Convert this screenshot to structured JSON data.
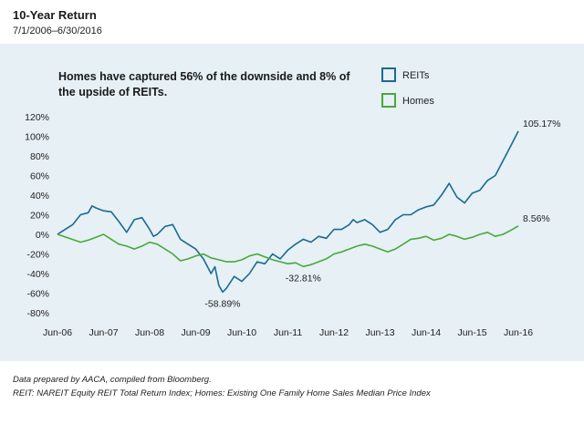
{
  "title": "10-Year Return",
  "subtitle": "7/1/2006–6/30/2016",
  "annotation": "Homes have captured 56% of the downside and 8% of the upside of REITs.",
  "footnotes": [
    "Data prepared by AACA, compiled from Bloomberg.",
    "REIT: NAREIT Equity REIT Total Return Index; Homes: Existing One Family Home Sales Median Price Index"
  ],
  "chart_data": {
    "type": "line",
    "title": "10-Year Return",
    "subtitle": "7/1/2006–6/30/2016",
    "xlabel": "",
    "ylabel": "",
    "x_tick_labels": [
      "Jun-06",
      "Jun-07",
      "Jun-08",
      "Jun-09",
      "Jun-10",
      "Jun-11",
      "Jun-12",
      "Jun-13",
      "Jun-14",
      "Jun-15",
      "Jun-16"
    ],
    "y_tick_labels": [
      "120%",
      "100%",
      "80%",
      "60%",
      "40%",
      "20%",
      "0%",
      "-20%",
      "-40%",
      "-60%",
      "-80%"
    ],
    "y_ticks": [
      120,
      100,
      80,
      60,
      40,
      20,
      0,
      -20,
      -40,
      -60,
      -80
    ],
    "ylim": [
      -80,
      120
    ],
    "xlim": [
      0,
      120
    ],
    "x_unit": "months since Jun-06",
    "grid": false,
    "legend_position": "top-right",
    "series": [
      {
        "name": "REITs",
        "color": "#1b6a8f",
        "x": [
          0,
          2,
          4,
          6,
          8,
          9,
          10,
          12,
          14,
          16,
          18,
          20,
          22,
          24,
          25,
          26,
          28,
          30,
          32,
          34,
          36,
          38,
          40,
          41,
          42,
          43,
          44,
          46,
          48,
          50,
          52,
          54,
          56,
          58,
          60,
          62,
          64,
          66,
          68,
          70,
          72,
          74,
          76,
          77,
          78,
          80,
          82,
          84,
          86,
          88,
          90,
          92,
          94,
          96,
          98,
          100,
          102,
          104,
          106,
          108,
          110,
          112,
          114,
          116,
          118,
          120
        ],
        "y": [
          0,
          5,
          10,
          20,
          22,
          29,
          27,
          24,
          23,
          13,
          2,
          15,
          17,
          5,
          -2,
          0,
          8,
          10,
          -5,
          -10,
          -15,
          -25,
          -40,
          -33,
          -52,
          -58.89,
          -55,
          -43,
          -48,
          -40,
          -28,
          -30,
          -20,
          -25,
          -16,
          -10,
          -5,
          -8,
          -2,
          -4,
          5,
          5,
          10,
          15,
          12,
          15,
          10,
          2,
          5,
          15,
          20,
          20,
          25,
          28,
          30,
          40,
          52,
          38,
          32,
          42,
          45,
          55,
          60,
          75,
          90,
          105.17
        ],
        "labels": [
          {
            "x": 43,
            "y": -58.89,
            "text": "-58.89%"
          },
          {
            "x": 64,
            "y": -32.81,
            "text": "-32.81%"
          },
          {
            "x": 120,
            "y": 105.17,
            "text": "105.17%"
          }
        ]
      },
      {
        "name": "Homes",
        "color": "#4aa83c",
        "x": [
          0,
          3,
          6,
          8,
          10,
          12,
          14,
          16,
          18,
          20,
          22,
          24,
          26,
          28,
          30,
          32,
          34,
          36,
          38,
          40,
          42,
          44,
          46,
          48,
          50,
          52,
          54,
          56,
          58,
          60,
          62,
          64,
          66,
          68,
          70,
          72,
          74,
          76,
          78,
          80,
          82,
          84,
          86,
          88,
          90,
          92,
          94,
          96,
          98,
          100,
          102,
          104,
          106,
          108,
          110,
          112,
          114,
          116,
          118,
          120
        ],
        "y": [
          0,
          -4,
          -8,
          -6,
          -3,
          0,
          -5,
          -10,
          -12,
          -15,
          -12,
          -8,
          -10,
          -15,
          -20,
          -27,
          -25,
          -22,
          -20,
          -24,
          -26,
          -28,
          -28,
          -26,
          -22,
          -20,
          -23,
          -26,
          -28,
          -30,
          -29,
          -32.81,
          -31,
          -28,
          -25,
          -20,
          -18,
          -15,
          -12,
          -10,
          -12,
          -15,
          -18,
          -15,
          -10,
          -5,
          -4,
          -2,
          -6,
          -4,
          0,
          -2,
          -5,
          -3,
          0,
          2,
          -2,
          0,
          4,
          8.56
        ],
        "labels": [
          {
            "x": 120,
            "y": 8.56,
            "text": "8.56%"
          }
        ]
      }
    ]
  }
}
